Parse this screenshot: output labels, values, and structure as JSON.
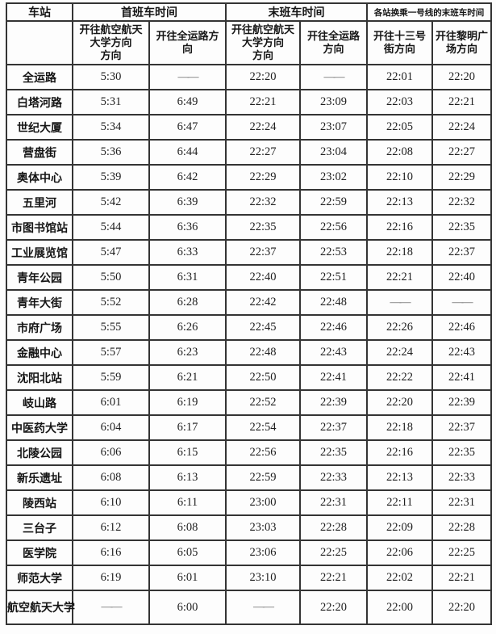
{
  "table": {
    "corner_header": "车站",
    "groups": [
      {
        "label": "首班车时间"
      },
      {
        "label": "末班车时间"
      },
      {
        "label": "各站换乘一号线的末班车时间"
      }
    ],
    "direction_headers": [
      "开往航空航天\n大学方向\n方向",
      "开往全运路方\n向",
      "开往航空航天\n大学方向\n方向",
      "开往全运路\n方向",
      "开往十三号\n街方向",
      "开往黎明广\n场方向"
    ],
    "rows": [
      {
        "station": "全运路",
        "times": [
          "5:30",
          "——",
          "22:20",
          "——",
          "22:01",
          "22:20"
        ]
      },
      {
        "station": "白塔河路",
        "times": [
          "5:31",
          "6:49",
          "22:21",
          "23:09",
          "22:03",
          "22:21"
        ]
      },
      {
        "station": "世纪大厦",
        "times": [
          "5:34",
          "6:47",
          "22:24",
          "23:07",
          "22:05",
          "22:24"
        ]
      },
      {
        "station": "营盘街",
        "times": [
          "5:36",
          "6:44",
          "22:27",
          "23:04",
          "22:08",
          "22:27"
        ]
      },
      {
        "station": "奥体中心",
        "times": [
          "5:39",
          "6:42",
          "22:29",
          "23:02",
          "22:10",
          "22:29"
        ]
      },
      {
        "station": "五里河",
        "times": [
          "5:42",
          "6:39",
          "22:32",
          "22:59",
          "22:13",
          "22:32"
        ]
      },
      {
        "station": "市图书馆站",
        "times": [
          "5:44",
          "6:36",
          "22:35",
          "22:56",
          "22:16",
          "22:35"
        ]
      },
      {
        "station": "工业展览馆",
        "times": [
          "5:47",
          "6:33",
          "22:37",
          "22:53",
          "22:18",
          "22:37"
        ]
      },
      {
        "station": "青年公园",
        "times": [
          "5:50",
          "6:31",
          "22:40",
          "22:51",
          "22:21",
          "22:40"
        ]
      },
      {
        "station": "青年大街",
        "times": [
          "5:52",
          "6:28",
          "22:42",
          "22:48",
          "——",
          "——"
        ]
      },
      {
        "station": "市府广场",
        "times": [
          "5:55",
          "6:26",
          "22:45",
          "22:46",
          "22:26",
          "22:46"
        ]
      },
      {
        "station": "金融中心",
        "times": [
          "5:57",
          "6:23",
          "22:48",
          "22:43",
          "22:24",
          "22:43"
        ]
      },
      {
        "station": "沈阳北站",
        "times": [
          "5:59",
          "6:21",
          "22:50",
          "22:41",
          "22:22",
          "22:41"
        ]
      },
      {
        "station": "岐山路",
        "times": [
          "6:01",
          "6:19",
          "22:52",
          "22:39",
          "22:20",
          "22:39"
        ]
      },
      {
        "station": "中医药大学",
        "times": [
          "6:04",
          "6:17",
          "22:54",
          "22:37",
          "22:18",
          "22:37"
        ]
      },
      {
        "station": "北陵公园",
        "times": [
          "6:06",
          "6:15",
          "22:56",
          "22:35",
          "22:16",
          "22:35"
        ]
      },
      {
        "station": "新乐遗址",
        "times": [
          "6:08",
          "6:13",
          "22:59",
          "22:33",
          "22:13",
          "22:33"
        ]
      },
      {
        "station": "陵西站",
        "times": [
          "6:10",
          "6:11",
          "23:00",
          "22:31",
          "22:11",
          "22:31"
        ]
      },
      {
        "station": "三台子",
        "times": [
          "6:12",
          "6:08",
          "23:03",
          "22:28",
          "22:09",
          "22:28"
        ]
      },
      {
        "station": "医学院",
        "times": [
          "6:16",
          "6:05",
          "23:06",
          "22:25",
          "22:06",
          "22:25"
        ]
      },
      {
        "station": "师范大学",
        "times": [
          "6:19",
          "6:01",
          "23:10",
          "22:21",
          "22:02",
          "22:21"
        ]
      },
      {
        "station": "航空航天大学",
        "times": [
          "——",
          "6:00",
          "——",
          "22:20",
          "22:00",
          "22:20"
        ]
      }
    ]
  }
}
